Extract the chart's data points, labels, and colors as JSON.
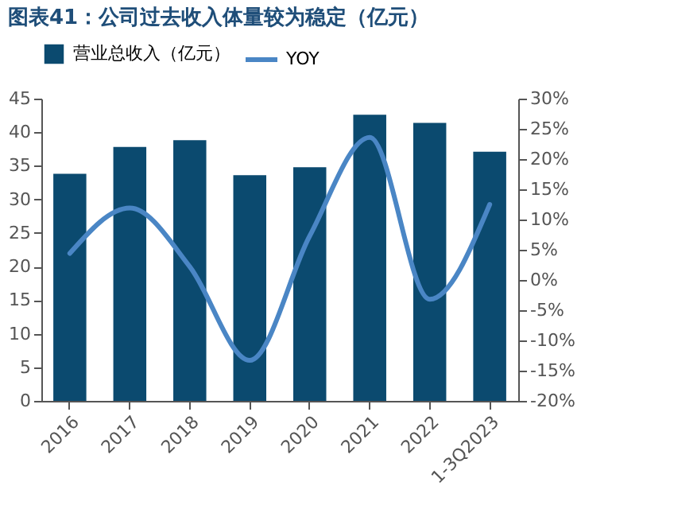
{
  "chart_data": {
    "type": "bar",
    "title": "图表41：公司过去收入体量较为稳定（亿元）",
    "categories": [
      "2016",
      "2017",
      "2018",
      "2019",
      "2020",
      "2021",
      "2022",
      "1-3Q2023"
    ],
    "series": [
      {
        "name": "营业总收入（亿元）",
        "color": "#0b4a6f",
        "values": [
          33.8,
          37.8,
          38.8,
          33.6,
          34.8,
          42.6,
          41.4,
          37.1
        ]
      },
      {
        "name": "YOY",
        "type": "line",
        "axis": "y2",
        "color": "#4a86c5",
        "values": [
          4.4,
          11.9,
          2.2,
          -13.3,
          7.3,
          23.6,
          -3.2,
          12.5
        ]
      }
    ],
    "ylim": [
      0,
      45
    ],
    "yticks": [
      0,
      5,
      10,
      15,
      20,
      25,
      30,
      35,
      40,
      45
    ],
    "y2lim": [
      -20,
      30
    ],
    "y2ticks": [
      {
        "value": -20,
        "label": "-20%"
      },
      {
        "value": -15,
        "label": "-15%"
      },
      {
        "value": -10,
        "label": "-10%"
      },
      {
        "value": -5,
        "label": "-5%"
      },
      {
        "value": 0,
        "label": "0%"
      },
      {
        "value": 5,
        "label": "5%"
      },
      {
        "value": 10,
        "label": "10%"
      },
      {
        "value": 15,
        "label": "15%"
      },
      {
        "value": 20,
        "label": "20%"
      },
      {
        "value": 25,
        "label": "25%"
      },
      {
        "value": 30,
        "label": "30%"
      }
    ],
    "grid": false,
    "legend": "top",
    "marker": "none",
    "line_style": "solid"
  }
}
